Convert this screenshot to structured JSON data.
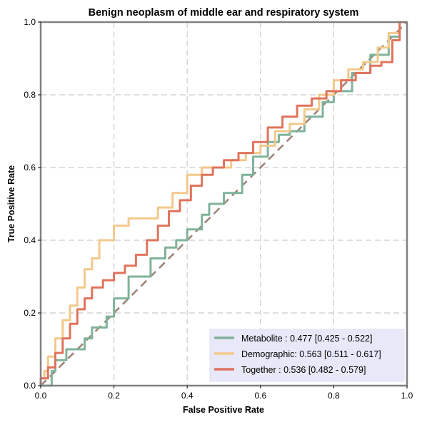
{
  "chart_data": {
    "type": "line",
    "title": "Benign neoplasm of middle ear and respiratory system",
    "xlabel": "False Positive Rate",
    "ylabel": "True Positive Rate",
    "xlim": [
      0,
      1
    ],
    "ylim": [
      0,
      1
    ],
    "xticks": [
      "0.0",
      "0.2",
      "0.4",
      "0.6",
      "0.8",
      "1.0"
    ],
    "yticks": [
      "0.0",
      "0.2",
      "0.4",
      "0.6",
      "0.8",
      "1.0"
    ],
    "grid": true,
    "legend_position": "bottom-right",
    "diagonal": {
      "x": [
        0,
        1
      ],
      "y": [
        0,
        1
      ],
      "color": "#a0857a",
      "style": "dashed"
    },
    "series": [
      {
        "name": "Metabolite",
        "legend_label": "Metabolite     : 0.477 [0.425 - 0.522]",
        "color": "#7fb39a",
        "x": [
          0.0,
          0.03,
          0.04,
          0.07,
          0.12,
          0.14,
          0.18,
          0.2,
          0.24,
          0.3,
          0.34,
          0.37,
          0.4,
          0.44,
          0.46,
          0.5,
          0.55,
          0.58,
          0.62,
          0.65,
          0.68,
          0.72,
          0.77,
          0.8,
          0.85,
          0.9,
          0.95,
          0.98,
          1.0
        ],
        "y": [
          0.0,
          0.0,
          0.04,
          0.07,
          0.1,
          0.13,
          0.16,
          0.19,
          0.24,
          0.3,
          0.35,
          0.38,
          0.4,
          0.43,
          0.47,
          0.5,
          0.53,
          0.58,
          0.63,
          0.67,
          0.69,
          0.7,
          0.74,
          0.78,
          0.81,
          0.86,
          0.91,
          0.96,
          1.0
        ]
      },
      {
        "name": "Demographic",
        "legend_label": "Demographic: 0.563 [0.511 - 0.617]",
        "color": "#f2c98a",
        "x": [
          0.0,
          0.01,
          0.02,
          0.04,
          0.06,
          0.08,
          0.1,
          0.12,
          0.14,
          0.16,
          0.2,
          0.24,
          0.28,
          0.32,
          0.36,
          0.4,
          0.44,
          0.48,
          0.52,
          0.56,
          0.6,
          0.64,
          0.68,
          0.72,
          0.76,
          0.8,
          0.84,
          0.88,
          0.92,
          0.95,
          0.98,
          1.0
        ],
        "y": [
          0.0,
          0.02,
          0.04,
          0.08,
          0.13,
          0.18,
          0.22,
          0.27,
          0.32,
          0.35,
          0.4,
          0.44,
          0.46,
          0.46,
          0.49,
          0.53,
          0.58,
          0.6,
          0.6,
          0.62,
          0.64,
          0.66,
          0.7,
          0.72,
          0.76,
          0.8,
          0.84,
          0.87,
          0.89,
          0.93,
          0.97,
          1.0
        ]
      },
      {
        "name": "Together",
        "legend_label": "Together       : 0.536 [0.482 - 0.579]",
        "color": "#e0735c",
        "x": [
          0.0,
          0.02,
          0.04,
          0.06,
          0.08,
          0.1,
          0.12,
          0.14,
          0.17,
          0.2,
          0.23,
          0.26,
          0.29,
          0.32,
          0.35,
          0.38,
          0.41,
          0.44,
          0.47,
          0.5,
          0.54,
          0.58,
          0.62,
          0.66,
          0.7,
          0.74,
          0.78,
          0.82,
          0.86,
          0.9,
          0.93,
          0.96,
          0.98,
          1.0
        ],
        "y": [
          0.0,
          0.02,
          0.05,
          0.09,
          0.13,
          0.17,
          0.21,
          0.24,
          0.27,
          0.29,
          0.31,
          0.33,
          0.36,
          0.4,
          0.44,
          0.48,
          0.51,
          0.55,
          0.58,
          0.6,
          0.62,
          0.64,
          0.67,
          0.71,
          0.74,
          0.77,
          0.79,
          0.81,
          0.84,
          0.86,
          0.88,
          0.89,
          0.95,
          1.0
        ]
      }
    ]
  }
}
